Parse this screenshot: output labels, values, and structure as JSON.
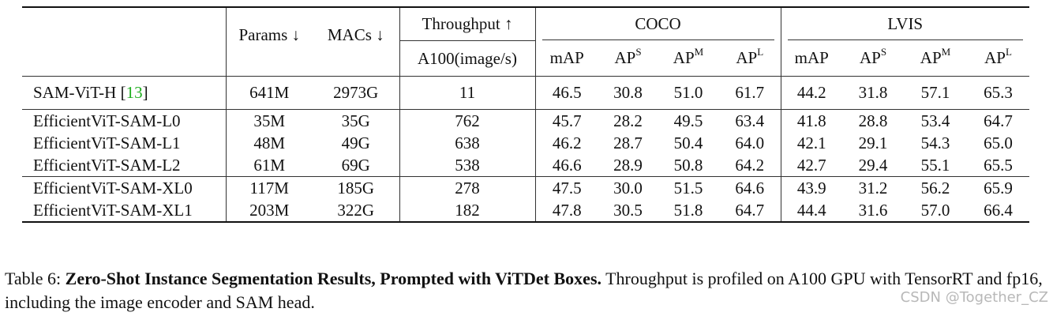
{
  "header": {
    "params": "Params ↓",
    "macs": "MACs ↓",
    "throughput": "Throughput ↑",
    "throughput_unit": "A100(image/s)",
    "coco": "COCO",
    "lvis": "LVIS",
    "metrics": [
      {
        "base": "mAP",
        "sup": ""
      },
      {
        "base": "AP",
        "sup": "S"
      },
      {
        "base": "AP",
        "sup": "M"
      },
      {
        "base": "AP",
        "sup": "L"
      },
      {
        "base": "mAP",
        "sup": ""
      },
      {
        "base": "AP",
        "sup": "S"
      },
      {
        "base": "AP",
        "sup": "M"
      },
      {
        "base": "AP",
        "sup": "L"
      }
    ]
  },
  "rows": [
    {
      "model": "SAM-ViT-H",
      "ref": "[13]",
      "params": "641M",
      "macs": "2973G",
      "throughput": "11",
      "coco": [
        "46.5",
        "30.8",
        "51.0",
        "61.7"
      ],
      "lvis": [
        "44.2",
        "31.8",
        "57.1",
        "65.3"
      ]
    },
    {
      "model": "EfficientViT-SAM-L0",
      "ref": "",
      "params": "35M",
      "macs": "35G",
      "throughput": "762",
      "coco": [
        "45.7",
        "28.2",
        "49.5",
        "63.4"
      ],
      "lvis": [
        "41.8",
        "28.8",
        "53.4",
        "64.7"
      ]
    },
    {
      "model": "EfficientViT-SAM-L1",
      "ref": "",
      "params": "48M",
      "macs": "49G",
      "throughput": "638",
      "coco": [
        "46.2",
        "28.7",
        "50.4",
        "64.0"
      ],
      "lvis": [
        "42.1",
        "29.1",
        "54.3",
        "65.0"
      ]
    },
    {
      "model": "EfficientViT-SAM-L2",
      "ref": "",
      "params": "61M",
      "macs": "69G",
      "throughput": "538",
      "coco": [
        "46.6",
        "28.9",
        "50.8",
        "64.2"
      ],
      "lvis": [
        "42.7",
        "29.4",
        "55.1",
        "65.5"
      ]
    },
    {
      "model": "EfficientViT-SAM-XL0",
      "ref": "",
      "params": "117M",
      "macs": "185G",
      "throughput": "278",
      "coco": [
        "47.5",
        "30.0",
        "51.5",
        "64.6"
      ],
      "lvis": [
        "43.9",
        "31.2",
        "56.2",
        "65.9"
      ]
    },
    {
      "model": "EfficientViT-SAM-XL1",
      "ref": "",
      "params": "203M",
      "macs": "322G",
      "throughput": "182",
      "coco": [
        "47.8",
        "30.5",
        "51.8",
        "64.7"
      ],
      "lvis": [
        "44.4",
        "31.6",
        "57.0",
        "66.4"
      ]
    }
  ],
  "caption": {
    "label": "Table 6: ",
    "title": "Zero-Shot Instance Segmentation Results, Prompted with ViTDet Boxes.",
    "text": " Throughput is profiled on A100 GPU with TensorRT and fp16, including the image encoder and SAM head."
  },
  "watermark": "CSDN @Together_CZ"
}
